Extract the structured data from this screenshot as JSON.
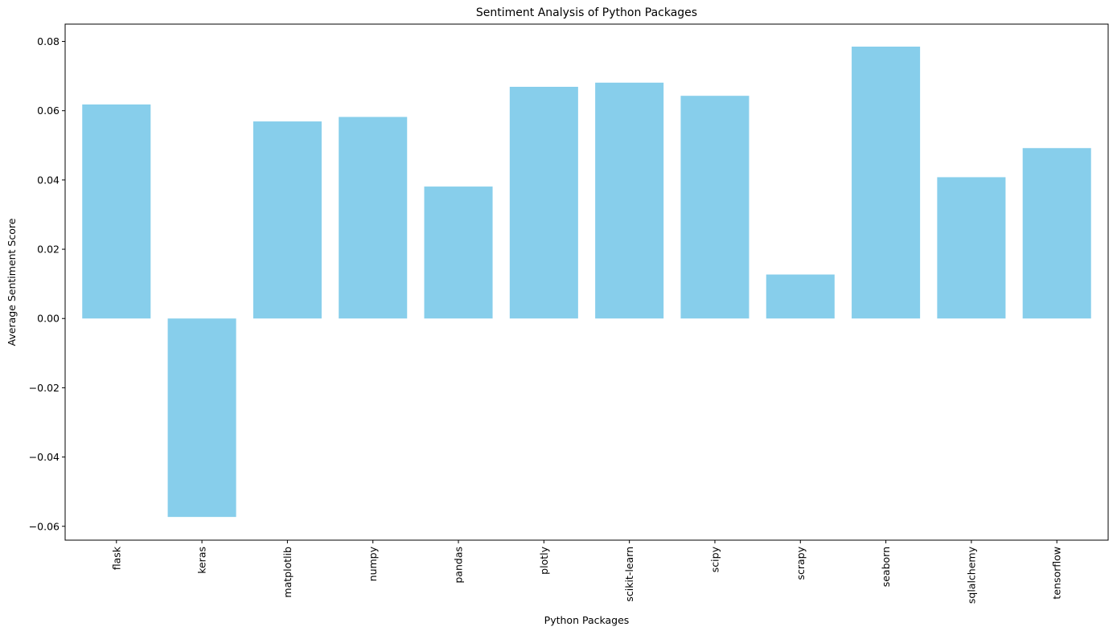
{
  "chart_data": {
    "type": "bar",
    "title": "Sentiment Analysis of Python Packages",
    "xlabel": "Python Packages",
    "ylabel": "Average Sentiment Score",
    "categories": [
      "flask",
      "keras",
      "matplotlib",
      "numpy",
      "pandas",
      "plotly",
      "scikit-learn",
      "scipy",
      "scrapy",
      "seaborn",
      "sqlalchemy",
      "tensorflow"
    ],
    "values": [
      0.0618,
      -0.0573,
      0.0569,
      0.0582,
      0.0381,
      0.0669,
      0.0681,
      0.0643,
      0.0127,
      0.0785,
      0.0408,
      0.0492
    ],
    "ylim": [
      -0.064,
      0.085
    ],
    "yticks": [
      -0.06,
      -0.04,
      -0.02,
      0.0,
      0.02,
      0.04,
      0.06,
      0.08
    ],
    "ytick_labels": [
      "−0.06",
      "−0.04",
      "−0.02",
      "0.00",
      "0.02",
      "0.04",
      "0.06",
      "0.08"
    ],
    "bar_color": "#87ceeb",
    "grid": false,
    "legend": false
  }
}
